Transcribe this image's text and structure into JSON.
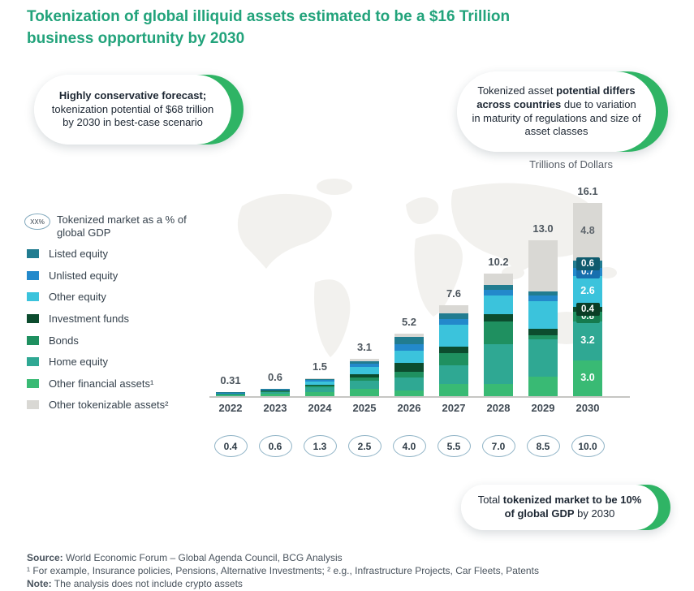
{
  "title": "Tokenization of global illiquid assets estimated to be a $16 Trillion business opportunity by 2030",
  "callouts": {
    "left": {
      "bold": "Highly conservative forecast;",
      "rest": " tokenization potential of $68 trillion by 2030 in best-case scenario"
    },
    "right": {
      "pre": "Tokenized asset ",
      "bold": "potential differs across countries",
      "rest": " due to variation in maturity of regulations and size of asset classes"
    },
    "bottom": {
      "pre": "Total ",
      "bold": "tokenized market to be 10% of global GDP",
      "rest": " by 2030"
    }
  },
  "axis_note": "Trillions of Dollars",
  "legend": {
    "gdp_icon_label": "XX%",
    "gdp_label": "Tokenized market as a % of global GDP",
    "items": [
      {
        "label": "Listed equity",
        "color": "#217c90"
      },
      {
        "label": "Unlisted equity",
        "color": "#2389cb"
      },
      {
        "label": "Other equity",
        "color": "#3bc3dc"
      },
      {
        "label": "Investment funds",
        "color": "#0c4c2e"
      },
      {
        "label": "Bonds",
        "color": "#1f9060"
      },
      {
        "label": "Home equity",
        "color": "#2fa893"
      },
      {
        "label": "Other financial assets¹",
        "color": "#39ba74"
      },
      {
        "label": "Other tokenizable assets²",
        "color": "#d9d8d4"
      }
    ]
  },
  "chart_data": {
    "type": "bar",
    "stacked": true,
    "title": "Tokenization of global illiquid assets estimated to be a $16 Trillion business opportunity by 2030",
    "ylabel": "Trillions of Dollars",
    "ylim": [
      0,
      16.1
    ],
    "grid": false,
    "legend_position": "left",
    "categories": [
      "2022",
      "2023",
      "2024",
      "2025",
      "2026",
      "2027",
      "2028",
      "2029",
      "2030"
    ],
    "totals": [
      0.31,
      0.6,
      1.5,
      3.1,
      5.2,
      7.6,
      10.2,
      13.0,
      16.1
    ],
    "total_labels": [
      "0.31",
      "0.6",
      "1.5",
      "3.1",
      "5.2",
      "7.6",
      "10.2",
      "13.0",
      "16.1"
    ],
    "gdp_percent_of_global_gdp": [
      "0.4",
      "0.6",
      "1.3",
      "2.5",
      "4.0",
      "5.5",
      "7.0",
      "8.5",
      "10.0"
    ],
    "series_note": "bottom-to-top stacking; only 2030 segments are labeled in the figure; earlier-year splits estimated from bar proportions",
    "series": [
      {
        "name": "Other financial assets¹",
        "color": "#39ba74",
        "values": [
          0.1,
          0.18,
          0.35,
          0.6,
          0.45,
          1.0,
          1.0,
          1.6,
          3.0
        ],
        "label_2030": "3.0"
      },
      {
        "name": "Home equity",
        "color": "#2fa893",
        "values": [
          0.09,
          0.16,
          0.38,
          0.7,
          1.1,
          1.55,
          3.3,
          3.1,
          3.2
        ],
        "label_2030": "3.2"
      },
      {
        "name": "Bonds",
        "color": "#1f9060",
        "values": [
          0.04,
          0.07,
          0.12,
          0.25,
          0.45,
          1.0,
          1.9,
          0.35,
          0.8
        ],
        "label_2030": "0.8",
        "chip": "#157a4e"
      },
      {
        "name": "Investment funds",
        "color": "#0c4c2e",
        "values": [
          0.02,
          0.04,
          0.1,
          0.25,
          0.8,
          0.55,
          0.6,
          0.55,
          0.4
        ],
        "label_2030": "0.4",
        "chip": "#0a3d25"
      },
      {
        "name": "Other equity",
        "color": "#3bc3dc",
        "values": [
          0.04,
          0.08,
          0.28,
          0.6,
          1.0,
          1.85,
          1.6,
          2.3,
          2.6
        ],
        "label_2030": "2.6"
      },
      {
        "name": "Unlisted equity",
        "color": "#2389cb",
        "values": [
          0.01,
          0.03,
          0.12,
          0.3,
          0.55,
          0.48,
          0.45,
          0.48,
          0.7
        ],
        "label_2030": "0.7",
        "chip": "#176fae"
      },
      {
        "name": "Listed equity",
        "color": "#217c90",
        "values": [
          0.01,
          0.04,
          0.1,
          0.2,
          0.55,
          0.45,
          0.4,
          0.35,
          0.6
        ],
        "label_2030": "0.6",
        "chip": "#0f5b6e"
      },
      {
        "name": "Other tokenizable assets²",
        "color": "#d9d8d4",
        "values": [
          0.0,
          0.0,
          0.05,
          0.2,
          0.3,
          0.72,
          0.95,
          4.27,
          4.8
        ],
        "label_2030": "4.8",
        "label_text_color": "#5f666d"
      }
    ]
  },
  "footer": {
    "source_bold": "Source:",
    "source_rest": " World Economic Forum – Global Agenda Council, BCG Analysis",
    "footnotes": "¹ For example, Insurance policies, Pensions, Alternative Investments; ² e.g., Infrastructure Projects, Car Fleets, Patents",
    "note_bold": "Note:",
    "note_rest": " The analysis does not include crypto assets"
  },
  "colors": {
    "title": "#22a37b",
    "callout_accent": "#2fb465",
    "axis_line": "#c6c6c3",
    "oval_border": "#8fb3c6",
    "map_watermark": "#f2f1ee"
  }
}
